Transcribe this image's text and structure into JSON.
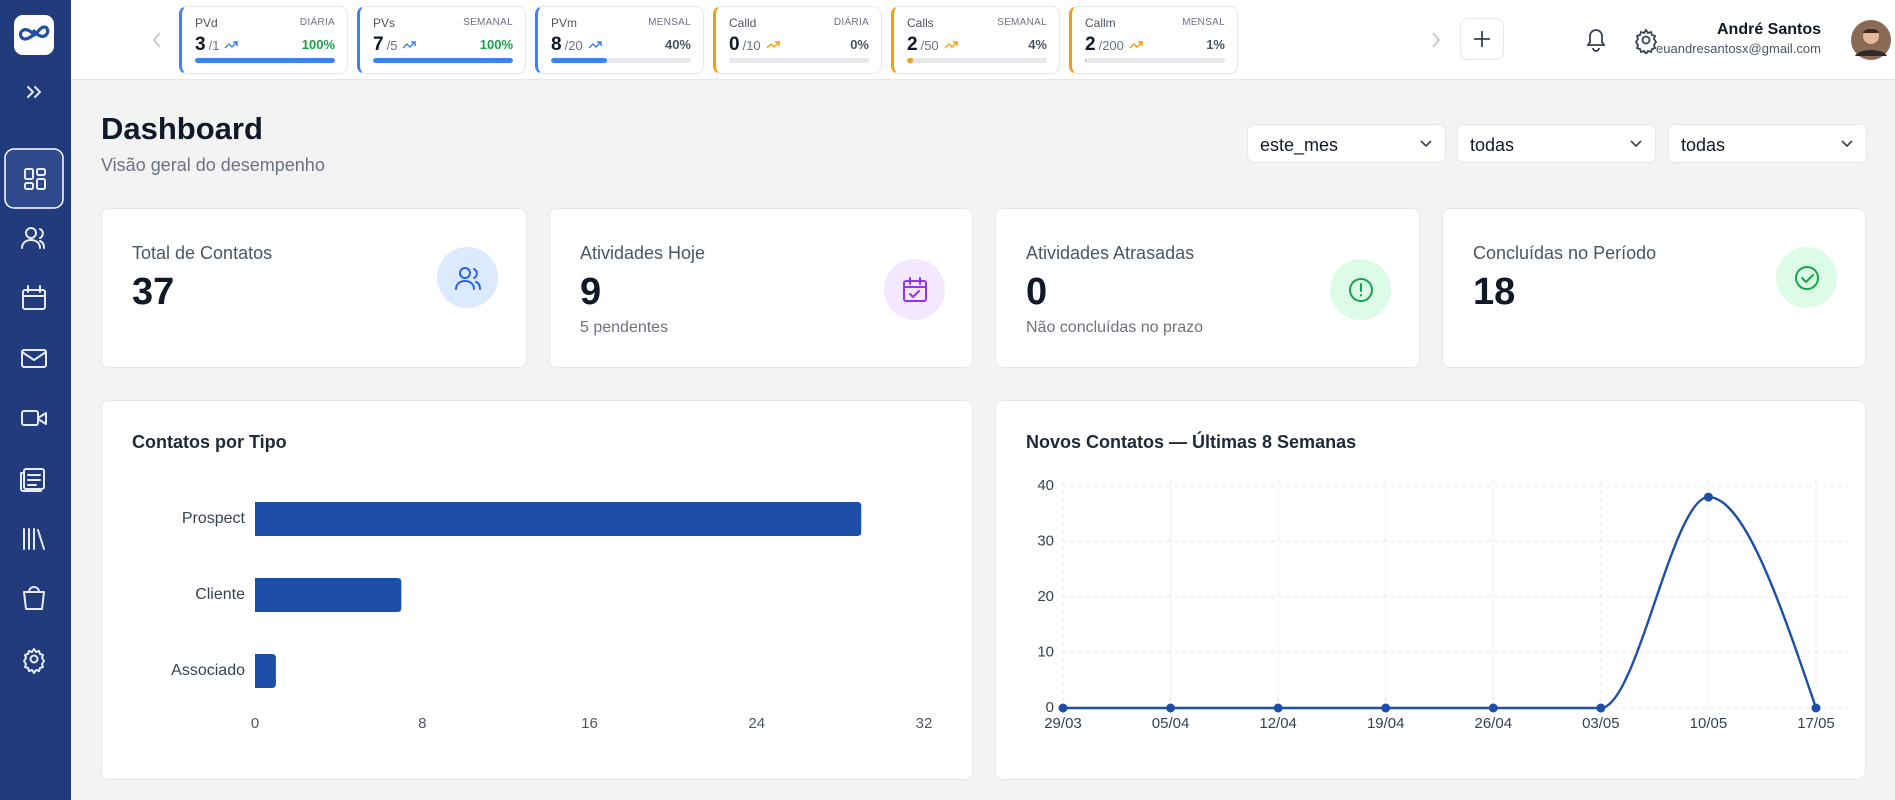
{
  "header": {
    "metrics": [
      {
        "name": "PVd",
        "period": "DIÁRIA",
        "value": 3,
        "target": "/1",
        "percent": {
          "value": 100,
          "label": "100%"
        },
        "color": "#3b82f6"
      },
      {
        "name": "PVs",
        "period": "SEMANAL",
        "value": 7,
        "target": "/5",
        "percent": {
          "value": 100,
          "label": "100%"
        },
        "color": "#3b82f6"
      },
      {
        "name": "PVm",
        "period": "MENSAL",
        "value": 8,
        "target": "/20",
        "percent": {
          "value": 40,
          "label": "40%"
        },
        "color": "#3b82f6"
      },
      {
        "name": "Calld",
        "period": "DIÁRIA",
        "value": 0,
        "target": "/10",
        "percent": {
          "value": 0,
          "label": "0%"
        },
        "color": "#f59e0b"
      },
      {
        "name": "Calls",
        "period": "SEMANAL",
        "value": 2,
        "target": "/50",
        "percent": {
          "value": 4,
          "label": "4%"
        },
        "color": "#f59e0b"
      },
      {
        "name": "Callm",
        "period": "MENSAL",
        "value": 2,
        "target": "/200",
        "percent": {
          "value": 1,
          "label": "1%"
        },
        "color": "#f59e0b"
      }
    ],
    "user": {
      "name": "André Santos",
      "email": "euandresantosx@gmail.com"
    }
  },
  "page": {
    "title": "Dashboard",
    "subtitle": "Visão geral do desempenho",
    "filters": [
      "este_mes",
      "todas",
      "todas"
    ]
  },
  "stats": [
    {
      "title": "Total de Contatos",
      "value": 37
    },
    {
      "title": "Atividades Hoje",
      "value": 9,
      "note": "5 pendentes"
    },
    {
      "title": "Atividades Atrasadas",
      "value": 0,
      "note": "Não concluídas no prazo"
    },
    {
      "title": "Concluídas no Período",
      "value": 18
    }
  ],
  "chart_data": [
    {
      "type": "bar",
      "title": "Contatos por Tipo",
      "orientation": "horizontal",
      "categories": [
        "Prospect",
        "Cliente",
        "Associado"
      ],
      "values": [
        29,
        7,
        1
      ],
      "color": "#1e4fa8",
      "xlim": [
        0,
        32
      ],
      "xticks": [
        0,
        8,
        16,
        24,
        32
      ]
    },
    {
      "type": "line",
      "title": "Novos Contatos — Últimas 8 Semanas",
      "categories": [
        "29/03",
        "05/04",
        "12/04",
        "19/04",
        "26/04",
        "03/05",
        "10/05",
        "17/05"
      ],
      "values": [
        0,
        0,
        0,
        0,
        0,
        0,
        38,
        0
      ],
      "color": "#1e4fa8",
      "ylim": [
        0,
        40
      ],
      "yticks": [
        0,
        10,
        20,
        30,
        40
      ],
      "grid": true
    }
  ]
}
